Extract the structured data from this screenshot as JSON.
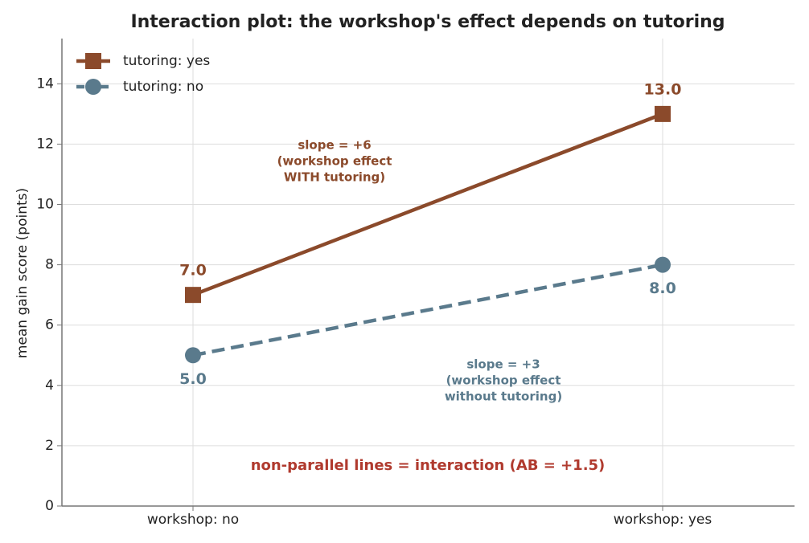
{
  "chart_data": {
    "type": "line",
    "title": "Interaction plot: the workshop's effect depends on tutoring",
    "y_label": "mean gain score (points)",
    "categories": [
      "workshop: no",
      "workshop: yes"
    ],
    "series": [
      {
        "name": "tutoring: yes",
        "color": "#8b4a2b",
        "marker": "square",
        "dashed": false,
        "values": [
          7,
          13
        ],
        "value_labels": [
          "7.0",
          "13.0"
        ]
      },
      {
        "name": "tutoring: no",
        "color": "#5a7a8c",
        "marker": "circle",
        "dashed": true,
        "values": [
          5,
          8
        ],
        "value_labels": [
          "5.0",
          "8.0"
        ]
      }
    ],
    "ylim": [
      0,
      15.5
    ],
    "yticks": [
      0,
      2,
      4,
      6,
      8,
      10,
      12,
      14
    ],
    "grid": true,
    "legend": "upper left",
    "annotations": [
      {
        "lines": [
          "slope = +6",
          "(workshop effect",
          "WITH tutoring)"
        ],
        "color": "#8b4a2b"
      },
      {
        "lines": [
          "slope = +3",
          "(workshop effect",
          "without tutoring)"
        ],
        "color": "#5a7a8c"
      },
      {
        "lines": [
          "non-parallel lines = interaction (AB = +1.5)"
        ],
        "color": "#b03a2e"
      }
    ]
  }
}
